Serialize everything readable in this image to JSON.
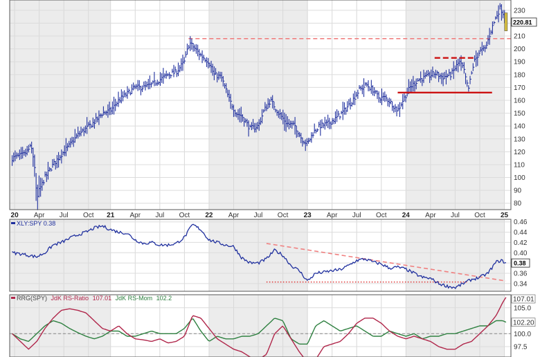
{
  "chart_data": [
    {
      "type": "bar",
      "panel": "price",
      "symbol": "XLY",
      "last_value": 220.81,
      "last_value_label": "220.81",
      "ylim": [
        75,
        238
      ],
      "y_ticks": [
        80,
        90,
        100,
        110,
        120,
        130,
        140,
        150,
        160,
        170,
        180,
        190,
        200,
        210,
        220,
        230
      ],
      "colors": {
        "bars": "#1f2f9e",
        "resistance": "#f08080",
        "levels": "#cc1111",
        "last_tag": "#d8c040"
      },
      "x_labels": [
        {
          "t": 0.3,
          "label": "20",
          "bold": true
        },
        {
          "t": 3.3,
          "label": "Apr"
        },
        {
          "t": 6.3,
          "label": "Jul"
        },
        {
          "t": 9.3,
          "label": "Oct"
        },
        {
          "t": 12.0,
          "label": "21",
          "bold": true
        },
        {
          "t": 15.0,
          "label": "Apr"
        },
        {
          "t": 18.0,
          "label": "Jul"
        },
        {
          "t": 21.0,
          "label": "Oct"
        },
        {
          "t": 24.0,
          "label": "22",
          "bold": true
        },
        {
          "t": 27.0,
          "label": "Apr"
        },
        {
          "t": 30.0,
          "label": "Jul"
        },
        {
          "t": 33.0,
          "label": "Oct"
        },
        {
          "t": 36.0,
          "label": "23",
          "bold": true
        },
        {
          "t": 39.0,
          "label": "Apr"
        },
        {
          "t": 42.0,
          "label": "Jul"
        },
        {
          "t": 45.0,
          "label": "Oct"
        },
        {
          "t": 48.0,
          "label": "24",
          "bold": true
        },
        {
          "t": 51.0,
          "label": "Apr"
        },
        {
          "t": 54.0,
          "label": "Jul"
        },
        {
          "t": 57.0,
          "label": "Oct"
        },
        {
          "t": 60.0,
          "label": "25",
          "bold": true
        }
      ],
      "anchors": [
        [
          0.0,
          115
        ],
        [
          1.5,
          118
        ],
        [
          2.3,
          124
        ],
        [
          2.7,
          112
        ],
        [
          3.0,
          82
        ],
        [
          3.3,
          90
        ],
        [
          4.0,
          100
        ],
        [
          5.0,
          110
        ],
        [
          6.0,
          118
        ],
        [
          7.0,
          125
        ],
        [
          8.0,
          133
        ],
        [
          9.0,
          138
        ],
        [
          10.0,
          143
        ],
        [
          11.0,
          150
        ],
        [
          12.0,
          152
        ],
        [
          13.0,
          160
        ],
        [
          14.0,
          165
        ],
        [
          15.0,
          170
        ],
        [
          16.0,
          170
        ],
        [
          17.0,
          172
        ],
        [
          18.0,
          176
        ],
        [
          19.0,
          180
        ],
        [
          20.0,
          182
        ],
        [
          21.0,
          190
        ],
        [
          21.6,
          205
        ],
        [
          22.3,
          200
        ],
        [
          23.0,
          195
        ],
        [
          24.0,
          190
        ],
        [
          24.6,
          180
        ],
        [
          25.5,
          178
        ],
        [
          26.5,
          160
        ],
        [
          27.3,
          150
        ],
        [
          28.0,
          148
        ],
        [
          29.0,
          138
        ],
        [
          30.0,
          140
        ],
        [
          30.7,
          152
        ],
        [
          31.5,
          160
        ],
        [
          32.5,
          150
        ],
        [
          33.5,
          142
        ],
        [
          34.5,
          140
        ],
        [
          35.3,
          130
        ],
        [
          36.0,
          126
        ],
        [
          36.7,
          135
        ],
        [
          37.5,
          140
        ],
        [
          38.5,
          142
        ],
        [
          39.5,
          146
        ],
        [
          40.5,
          152
        ],
        [
          41.5,
          160
        ],
        [
          42.3,
          168
        ],
        [
          43.2,
          172
        ],
        [
          44.0,
          168
        ],
        [
          44.7,
          162
        ],
        [
          45.5,
          162
        ],
        [
          46.2,
          158
        ],
        [
          47.0,
          152
        ],
        [
          47.8,
          162
        ],
        [
          48.5,
          170
        ],
        [
          49.5,
          176
        ],
        [
          50.5,
          178
        ],
        [
          51.5,
          181
        ],
        [
          52.5,
          178
        ],
        [
          53.5,
          180
        ],
        [
          54.5,
          190
        ],
        [
          55.0,
          185
        ],
        [
          55.6,
          168
        ],
        [
          56.3,
          190
        ],
        [
          57.0,
          198
        ],
        [
          57.7,
          200
        ],
        [
          58.3,
          213
        ],
        [
          59.0,
          225
        ],
        [
          59.5,
          232
        ],
        [
          60.0,
          226
        ],
        [
          60.2,
          220.81
        ]
      ],
      "resistance_level": 208,
      "level_lines": [
        {
          "y": 166,
          "t0": 47.0,
          "t1": 58.5
        },
        {
          "y": 193,
          "t0": 51.5,
          "t1": 56.5
        }
      ]
    },
    {
      "type": "line",
      "panel": "relative-strength",
      "ratio_label": "XLY:SPY",
      "last_value": 0.38,
      "last_value_label": "0.38",
      "ylim": [
        0.325,
        0.465
      ],
      "y_ticks": [
        "0.46",
        "0.44",
        "0.42",
        "0.40",
        "0.38",
        "0.36",
        "0.34"
      ],
      "colors": {
        "line": "#1f2f9e",
        "trend": "#f08080",
        "dotted": "#dd3333",
        "tag": "#ffffff"
      },
      "anchors": [
        [
          0.0,
          0.4
        ],
        [
          1.0,
          0.398
        ],
        [
          2.0,
          0.395
        ],
        [
          3.0,
          0.392
        ],
        [
          4.0,
          0.4
        ],
        [
          5.0,
          0.415
        ],
        [
          6.0,
          0.42
        ],
        [
          7.0,
          0.428
        ],
        [
          8.0,
          0.435
        ],
        [
          9.0,
          0.44
        ],
        [
          10.0,
          0.448
        ],
        [
          11.0,
          0.452
        ],
        [
          12.0,
          0.445
        ],
        [
          13.0,
          0.44
        ],
        [
          14.0,
          0.438
        ],
        [
          15.0,
          0.425
        ],
        [
          16.0,
          0.418
        ],
        [
          17.0,
          0.42
        ],
        [
          18.0,
          0.415
        ],
        [
          19.0,
          0.415
        ],
        [
          20.0,
          0.418
        ],
        [
          21.0,
          0.43
        ],
        [
          22.0,
          0.455
        ],
        [
          23.0,
          0.445
        ],
        [
          24.0,
          0.425
        ],
        [
          25.0,
          0.42
        ],
        [
          26.0,
          0.415
        ],
        [
          27.0,
          0.412
        ],
        [
          28.0,
          0.39
        ],
        [
          29.0,
          0.38
        ],
        [
          30.0,
          0.38
        ],
        [
          31.0,
          0.388
        ],
        [
          32.0,
          0.405
        ],
        [
          33.0,
          0.395
        ],
        [
          34.0,
          0.375
        ],
        [
          35.0,
          0.365
        ],
        [
          36.0,
          0.345
        ],
        [
          37.0,
          0.36
        ],
        [
          38.0,
          0.362
        ],
        [
          39.0,
          0.365
        ],
        [
          40.0,
          0.367
        ],
        [
          41.0,
          0.375
        ],
        [
          42.0,
          0.385
        ],
        [
          43.0,
          0.388
        ],
        [
          44.0,
          0.382
        ],
        [
          45.0,
          0.378
        ],
        [
          46.0,
          0.37
        ],
        [
          47.0,
          0.372
        ],
        [
          48.0,
          0.368
        ],
        [
          49.0,
          0.36
        ],
        [
          50.0,
          0.352
        ],
        [
          51.0,
          0.35
        ],
        [
          52.0,
          0.34
        ],
        [
          53.0,
          0.335
        ],
        [
          54.0,
          0.332
        ],
        [
          55.0,
          0.34
        ],
        [
          56.0,
          0.348
        ],
        [
          57.0,
          0.352
        ],
        [
          58.0,
          0.36
        ],
        [
          59.0,
          0.382
        ],
        [
          59.6,
          0.385
        ],
        [
          60.2,
          0.38
        ]
      ],
      "trend_line": {
        "t0": 31.0,
        "y0": 0.418,
        "t1": 60.2,
        "y1": 0.345
      },
      "dotted_support": {
        "y": 0.343,
        "t0": 31.0,
        "t1": 55.5
      }
    },
    {
      "type": "line",
      "panel": "rrg",
      "legend_prefix": "RRG(SPY)",
      "series": [
        {
          "name": "JdK RS-Ratio",
          "last_value": 107.01,
          "color": "#b0264a"
        },
        {
          "name": "JdK RS-Mom",
          "last_value": 102.2,
          "color": "#2e8040"
        }
      ],
      "ylim": [
        95.5,
        107.5
      ],
      "y_ticks": [
        "105.0",
        "100.0",
        "97.5"
      ],
      "tag_labels": [
        "107.01",
        "102.20"
      ],
      "baseline": 100.0,
      "ratio_anchors": [
        [
          0.0,
          100.0
        ],
        [
          1.0,
          98.5
        ],
        [
          2.0,
          97.0
        ],
        [
          3.0,
          98.5
        ],
        [
          4.0,
          101.0
        ],
        [
          5.0,
          103.0
        ],
        [
          6.0,
          104.5
        ],
        [
          7.0,
          104.8
        ],
        [
          8.0,
          104.5
        ],
        [
          9.0,
          104.0
        ],
        [
          10.0,
          102.5
        ],
        [
          11.0,
          101.0
        ],
        [
          12.0,
          100.5
        ],
        [
          13.0,
          101.5
        ],
        [
          14.0,
          100.0
        ],
        [
          15.0,
          99.0
        ],
        [
          16.0,
          98.8
        ],
        [
          17.0,
          98.5
        ],
        [
          18.0,
          99.0
        ],
        [
          19.0,
          98.2
        ],
        [
          20.0,
          98.5
        ],
        [
          21.0,
          99.5
        ],
        [
          22.0,
          103.5
        ],
        [
          23.0,
          103.0
        ],
        [
          24.0,
          101.0
        ],
        [
          25.0,
          99.0
        ],
        [
          26.0,
          98.0
        ],
        [
          27.0,
          97.0
        ],
        [
          28.0,
          96.5
        ],
        [
          29.0,
          95.5
        ],
        [
          30.0,
          95.0
        ],
        [
          31.0,
          96.0
        ],
        [
          32.0,
          100.0
        ],
        [
          33.0,
          101.5
        ],
        [
          34.0,
          99.0
        ],
        [
          35.0,
          96.5
        ],
        [
          36.0,
          94.5
        ],
        [
          37.0,
          95.0
        ],
        [
          38.0,
          97.5
        ],
        [
          39.0,
          98.0
        ],
        [
          40.0,
          98.5
        ],
        [
          41.0,
          100.0
        ],
        [
          42.0,
          102.0
        ],
        [
          43.0,
          103.0
        ],
        [
          44.0,
          103.0
        ],
        [
          45.0,
          102.0
        ],
        [
          46.0,
          100.5
        ],
        [
          47.0,
          99.5
        ],
        [
          48.0,
          99.0
        ],
        [
          49.0,
          99.5
        ],
        [
          50.0,
          99.0
        ],
        [
          51.0,
          98.5
        ],
        [
          52.0,
          97.5
        ],
        [
          53.0,
          97.0
        ],
        [
          54.0,
          97.0
        ],
        [
          55.0,
          98.0
        ],
        [
          56.0,
          98.5
        ],
        [
          57.0,
          100.0
        ],
        [
          58.0,
          101.5
        ],
        [
          59.0,
          103.5
        ],
        [
          59.8,
          106.0
        ],
        [
          60.2,
          107.01
        ]
      ],
      "mom_anchors": [
        [
          0.0,
          100.0
        ],
        [
          1.0,
          99.0
        ],
        [
          2.0,
          98.5
        ],
        [
          3.0,
          100.0
        ],
        [
          4.0,
          101.5
        ],
        [
          5.0,
          102.5
        ],
        [
          6.0,
          102.0
        ],
        [
          7.0,
          101.0
        ],
        [
          8.0,
          100.2
        ],
        [
          9.0,
          99.5
        ],
        [
          10.0,
          99.0
        ],
        [
          11.0,
          99.5
        ],
        [
          12.0,
          100.5
        ],
        [
          13.0,
          100.5
        ],
        [
          14.0,
          99.5
        ],
        [
          15.0,
          99.5
        ],
        [
          16.0,
          100.0
        ],
        [
          17.0,
          100.5
        ],
        [
          18.0,
          100.0
        ],
        [
          19.0,
          100.0
        ],
        [
          20.0,
          100.0
        ],
        [
          21.0,
          101.0
        ],
        [
          22.0,
          103.0
        ],
        [
          23.0,
          100.5
        ],
        [
          24.0,
          98.5
        ],
        [
          25.0,
          99.5
        ],
        [
          26.0,
          99.0
        ],
        [
          27.0,
          99.0
        ],
        [
          28.0,
          99.5
        ],
        [
          29.0,
          99.5
        ],
        [
          30.0,
          100.0
        ],
        [
          31.0,
          101.5
        ],
        [
          32.0,
          103.0
        ],
        [
          33.0,
          102.5
        ],
        [
          34.0,
          99.0
        ],
        [
          35.0,
          98.0
        ],
        [
          36.0,
          98.0
        ],
        [
          37.0,
          101.5
        ],
        [
          38.0,
          102.5
        ],
        [
          39.0,
          101.5
        ],
        [
          40.0,
          100.5
        ],
        [
          41.0,
          101.0
        ],
        [
          42.0,
          101.5
        ],
        [
          43.0,
          100.5
        ],
        [
          44.0,
          99.5
        ],
        [
          45.0,
          99.5
        ],
        [
          46.0,
          100.5
        ],
        [
          47.0,
          100.0
        ],
        [
          48.0,
          99.5
        ],
        [
          49.0,
          100.0
        ],
        [
          50.0,
          99.0
        ],
        [
          51.0,
          99.5
        ],
        [
          52.0,
          99.5
        ],
        [
          53.0,
          100.0
        ],
        [
          54.0,
          100.0
        ],
        [
          55.0,
          100.5
        ],
        [
          56.0,
          101.0
        ],
        [
          57.0,
          101.5
        ],
        [
          58.0,
          101.5
        ],
        [
          59.0,
          102.5
        ],
        [
          59.8,
          102.5
        ],
        [
          60.2,
          102.2
        ]
      ]
    }
  ]
}
